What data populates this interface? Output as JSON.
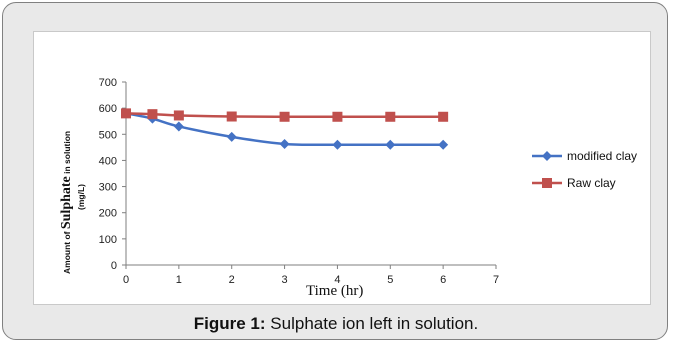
{
  "caption": {
    "label": "Figure 1:",
    "text": "Sulphate ion left in solution."
  },
  "chart_data": {
    "type": "line",
    "title": "",
    "xlabel": "Time (hr)",
    "ylabel": {
      "prefix": "Amount of ",
      "main": "Sulphate",
      "suffix": " in solution",
      "line2": "(mg/L)"
    },
    "xlim": [
      0,
      7
    ],
    "ylim": [
      0,
      700
    ],
    "xticks": [
      0,
      1,
      2,
      3,
      4,
      5,
      6,
      7
    ],
    "yticks": [
      0,
      100,
      200,
      300,
      400,
      500,
      600,
      700
    ],
    "grid": false,
    "legend_position": "right",
    "series": [
      {
        "name": "modified clay",
        "color": "#4472c4",
        "marker": "diamond",
        "x": [
          0,
          0.5,
          1,
          2,
          3,
          4,
          5,
          6
        ],
        "values": [
          580,
          560,
          530,
          490,
          463,
          460,
          460,
          460
        ]
      },
      {
        "name": "Raw clay",
        "color": "#c0504d",
        "marker": "square",
        "x": [
          0,
          0.5,
          1,
          2,
          3,
          4,
          5,
          6
        ],
        "values": [
          580,
          577,
          572,
          568,
          567,
          567,
          567,
          567
        ]
      }
    ]
  }
}
